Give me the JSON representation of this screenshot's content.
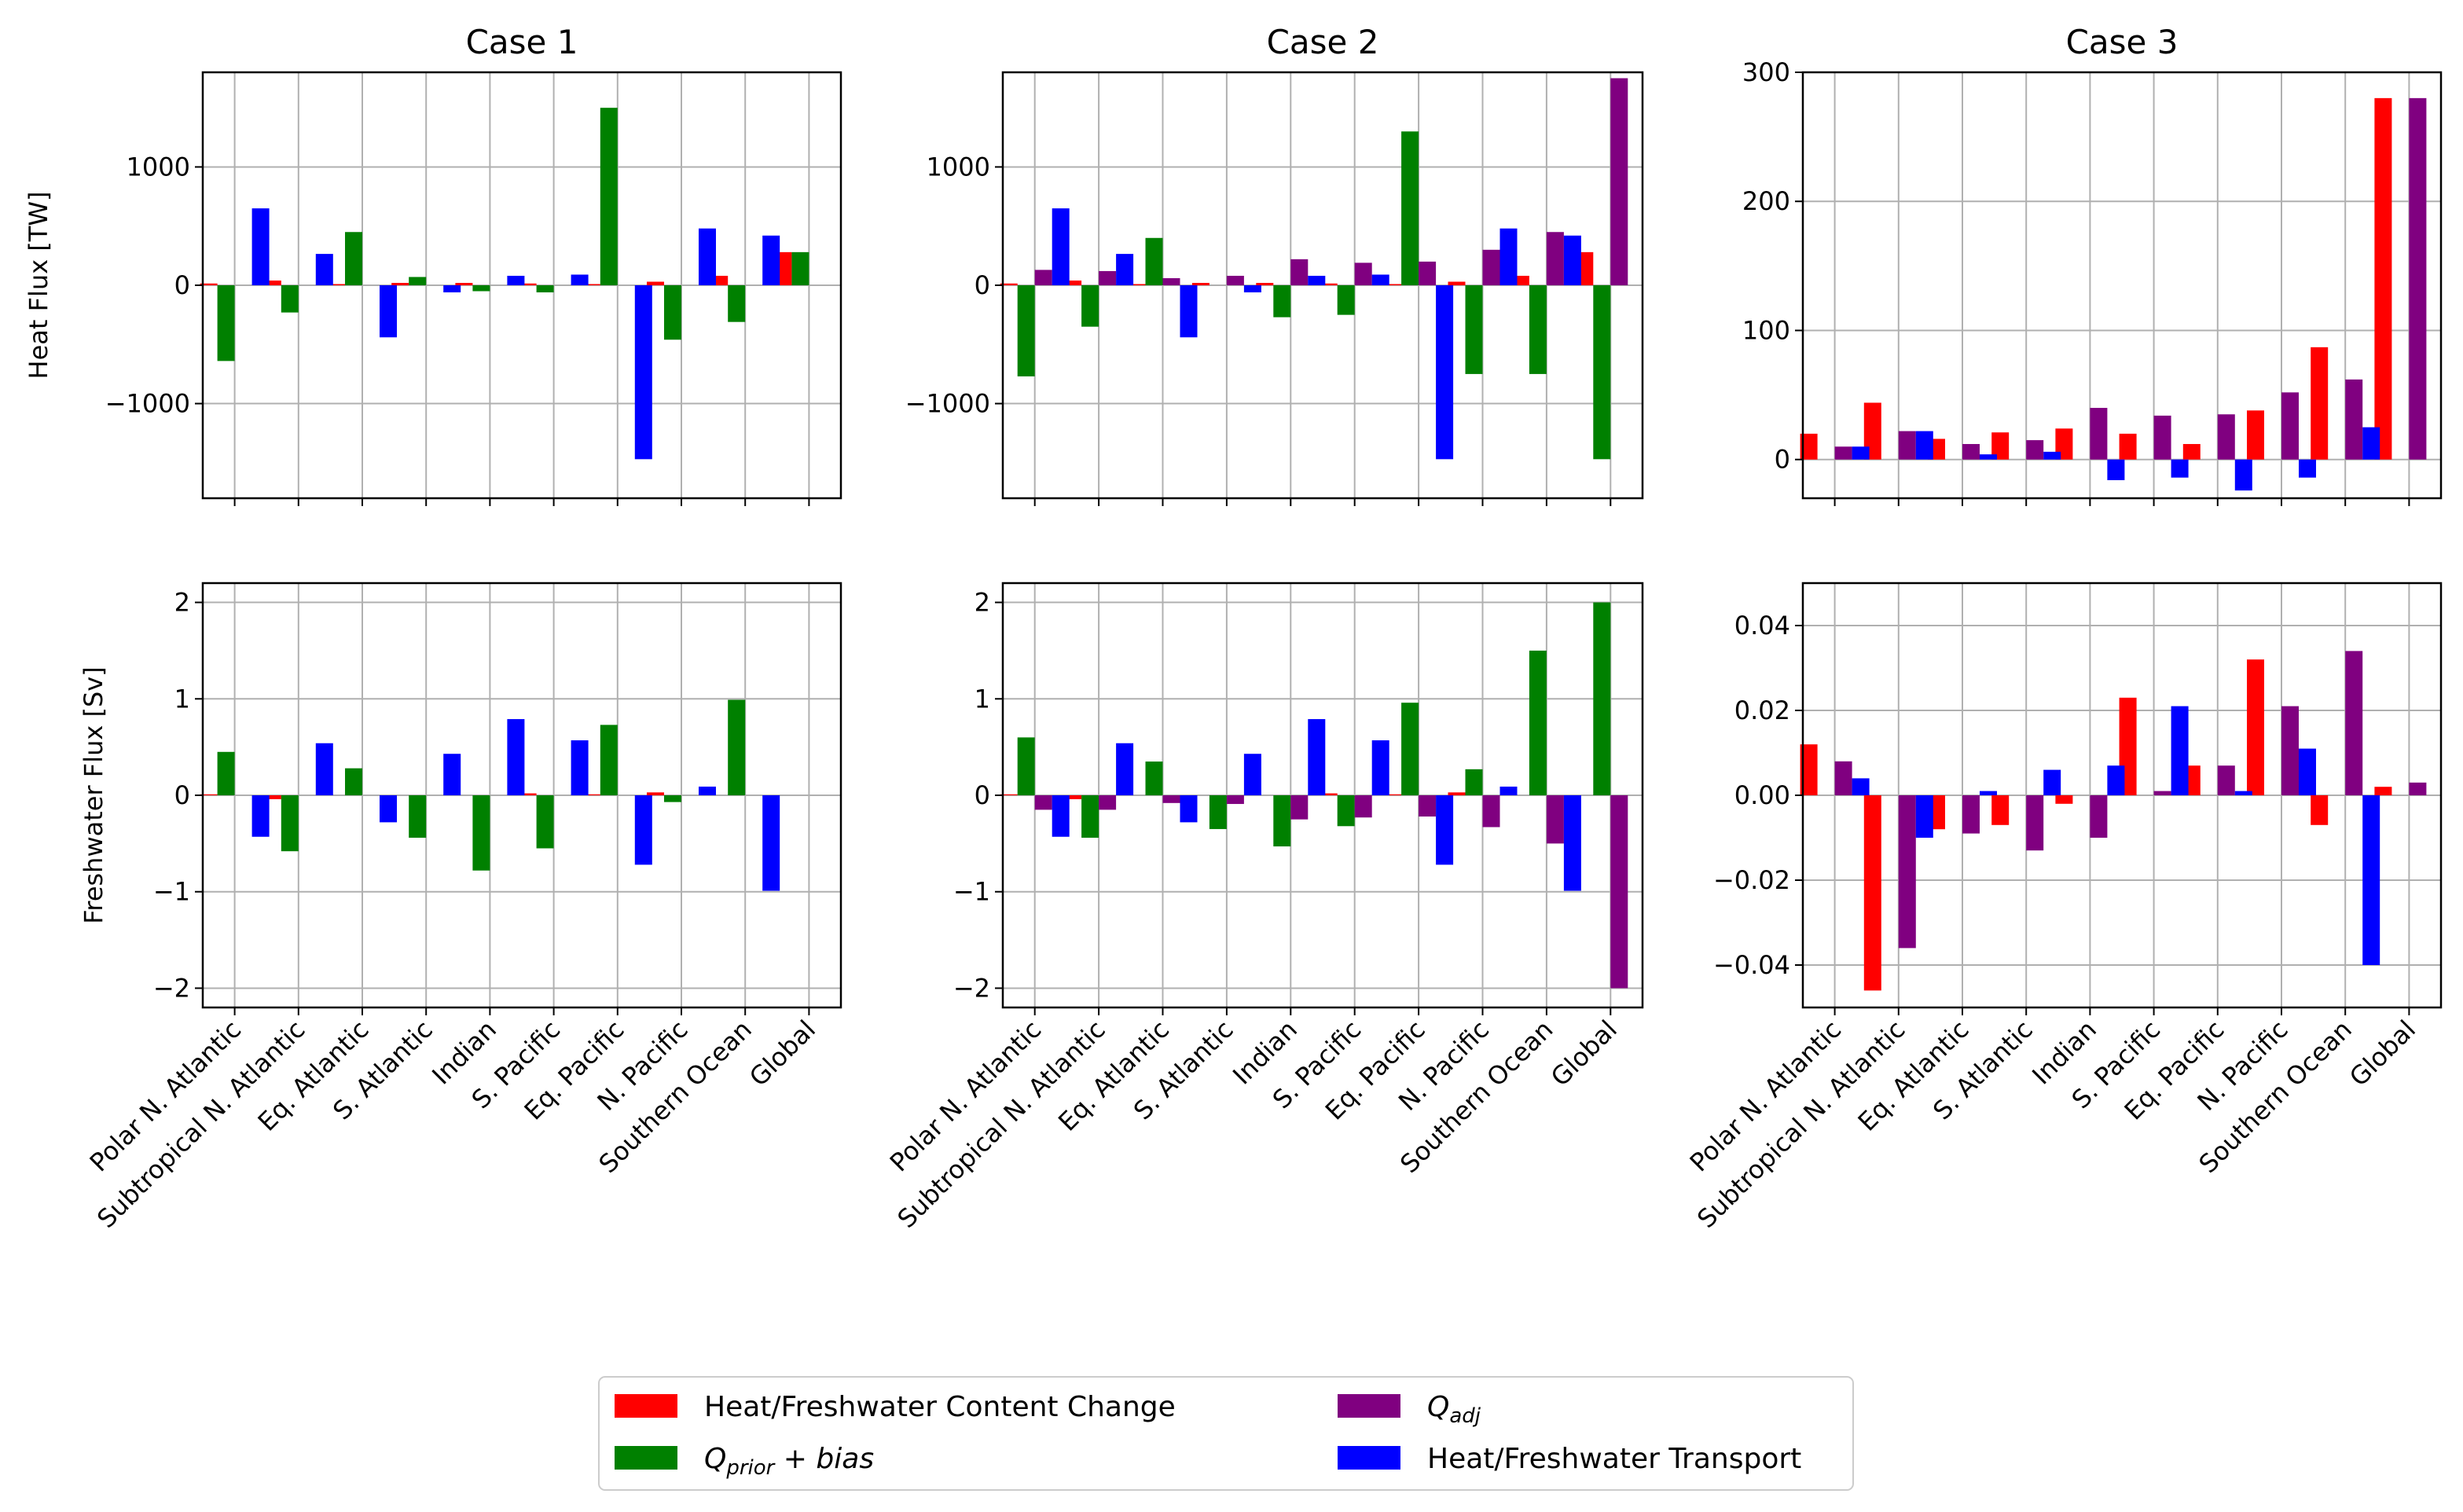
{
  "categories": [
    "Polar N. Atlantic",
    "Subtropical N. Atlantic",
    "Eq. Atlantic",
    "S. Atlantic",
    "Indian",
    "S. Pacific",
    "Eq. Pacific",
    "N. Pacific",
    "Southern Ocean",
    "Global"
  ],
  "series_colors": {
    "content": "#ff0000",
    "prior": "#008000",
    "adj": "#800080",
    "transport": "#0000ff"
  },
  "legend": [
    {
      "key": "content",
      "label": "Heat/Freshwater Content Change"
    },
    {
      "key": "adj",
      "label": "Q_adj",
      "math_base": "Q",
      "math_sub": "adj"
    },
    {
      "key": "prior",
      "label": "Q_prior + bias",
      "math_base": "Q",
      "math_sub": "prior",
      "math_rest": " + bias"
    },
    {
      "key": "transport",
      "label": "Heat/Freshwater Transport"
    }
  ],
  "chart_data": [
    {
      "type": "bar",
      "title": "Case 1",
      "ylabel": "Heat Flux [TW]",
      "ylim": [
        -1800,
        1800
      ],
      "yticks": [
        -1000,
        0,
        1000
      ],
      "grid": true,
      "series": [
        {
          "key": "content",
          "values": [
            15,
            40,
            10,
            20,
            20,
            15,
            10,
            30,
            80,
            280
          ]
        },
        {
          "key": "prior",
          "values": [
            -640,
            -230,
            450,
            70,
            -50,
            -60,
            1500,
            -460,
            -310,
            280
          ]
        },
        {
          "key": "adj",
          "values": [
            0,
            0,
            0,
            0,
            0,
            0,
            0,
            0,
            0,
            0
          ]
        },
        {
          "key": "transport",
          "values": [
            650,
            265,
            -440,
            -60,
            80,
            90,
            -1470,
            480,
            420,
            0
          ]
        }
      ]
    },
    {
      "type": "bar",
      "title": "Case 2",
      "ylabel": "",
      "ylim": [
        -1800,
        1800
      ],
      "yticks": [
        -1000,
        0,
        1000
      ],
      "grid": true,
      "series": [
        {
          "key": "content",
          "values": [
            15,
            40,
            10,
            20,
            20,
            15,
            10,
            30,
            80,
            280
          ]
        },
        {
          "key": "prior",
          "values": [
            -770,
            -350,
            400,
            0,
            -270,
            -250,
            1300,
            -750,
            -750,
            -1470
          ]
        },
        {
          "key": "adj",
          "values": [
            130,
            120,
            60,
            80,
            220,
            190,
            200,
            300,
            450,
            1750
          ]
        },
        {
          "key": "transport",
          "values": [
            650,
            265,
            -440,
            -60,
            80,
            90,
            -1470,
            480,
            420,
            0
          ]
        }
      ]
    },
    {
      "type": "bar",
      "title": "Case 3",
      "ylabel": "",
      "ylim": [
        -30,
        300
      ],
      "yticks": [
        0,
        100,
        200,
        300
      ],
      "grid": true,
      "series": [
        {
          "key": "content",
          "values": [
            20,
            44,
            16,
            21,
            24,
            20,
            12,
            38,
            87,
            280
          ]
        },
        {
          "key": "prior",
          "values": [
            0,
            0,
            0,
            0,
            0,
            0,
            0,
            0,
            0,
            0
          ]
        },
        {
          "key": "adj",
          "values": [
            10,
            22,
            12,
            15,
            40,
            34,
            35,
            52,
            62,
            280
          ]
        },
        {
          "key": "transport",
          "values": [
            10,
            22,
            4,
            6,
            -16,
            -14,
            -24,
            -14,
            25,
            0
          ]
        }
      ]
    },
    {
      "type": "bar",
      "title": "",
      "ylabel": "Freshwater Flux [Sv]",
      "ylim": [
        -2.2,
        2.2
      ],
      "yticks": [
        -2,
        -1,
        0,
        1,
        2
      ],
      "grid": true,
      "series": [
        {
          "key": "content",
          "values": [
            0.01,
            -0.04,
            0,
            0,
            0,
            0.02,
            0.01,
            0.03,
            0,
            0
          ]
        },
        {
          "key": "prior",
          "values": [
            0.45,
            -0.58,
            0.28,
            -0.44,
            -0.78,
            -0.55,
            0.73,
            -0.07,
            0.99,
            0
          ]
        },
        {
          "key": "adj",
          "values": [
            0,
            0,
            0,
            0,
            0,
            0,
            0,
            0,
            0,
            0
          ]
        },
        {
          "key": "transport",
          "values": [
            -0.43,
            0.54,
            -0.28,
            0.43,
            0.79,
            0.57,
            -0.72,
            0.09,
            -0.99,
            0
          ]
        }
      ]
    },
    {
      "type": "bar",
      "title": "",
      "ylabel": "",
      "ylim": [
        -2.2,
        2.2
      ],
      "yticks": [
        -2,
        -1,
        0,
        1,
        2
      ],
      "grid": true,
      "series": [
        {
          "key": "content",
          "values": [
            0.01,
            -0.04,
            0,
            0,
            0,
            0.02,
            0.01,
            0.03,
            0,
            0
          ]
        },
        {
          "key": "prior",
          "values": [
            0.6,
            -0.44,
            0.35,
            -0.35,
            -0.53,
            -0.32,
            0.96,
            0.27,
            1.5,
            2.0
          ]
        },
        {
          "key": "adj",
          "values": [
            -0.15,
            -0.15,
            -0.08,
            -0.09,
            -0.25,
            -0.23,
            -0.22,
            -0.33,
            -0.5,
            -2.0
          ]
        },
        {
          "key": "transport",
          "values": [
            -0.43,
            0.54,
            -0.28,
            0.43,
            0.79,
            0.57,
            -0.72,
            0.09,
            -0.99,
            0
          ]
        }
      ]
    },
    {
      "type": "bar",
      "title": "",
      "ylabel": "",
      "ylim": [
        -0.05,
        0.05
      ],
      "yticks": [
        -0.04,
        -0.02,
        0.0,
        0.02,
        0.04
      ],
      "tick_format": "2",
      "grid": true,
      "series": [
        {
          "key": "content",
          "values": [
            0.012,
            -0.046,
            -0.008,
            -0.007,
            -0.002,
            0.023,
            0.007,
            0.032,
            -0.007,
            0.002
          ]
        },
        {
          "key": "prior",
          "values": [
            0,
            0,
            0,
            0,
            0,
            0,
            0,
            0,
            0,
            0
          ]
        },
        {
          "key": "adj",
          "values": [
            0.008,
            -0.036,
            -0.009,
            -0.013,
            -0.01,
            0.001,
            0.007,
            0.021,
            0.034,
            0.003
          ]
        },
        {
          "key": "transport",
          "values": [
            0.004,
            -0.01,
            0.001,
            0.006,
            0.007,
            0.021,
            0.001,
            0.011,
            -0.04,
            0
          ]
        }
      ]
    }
  ]
}
